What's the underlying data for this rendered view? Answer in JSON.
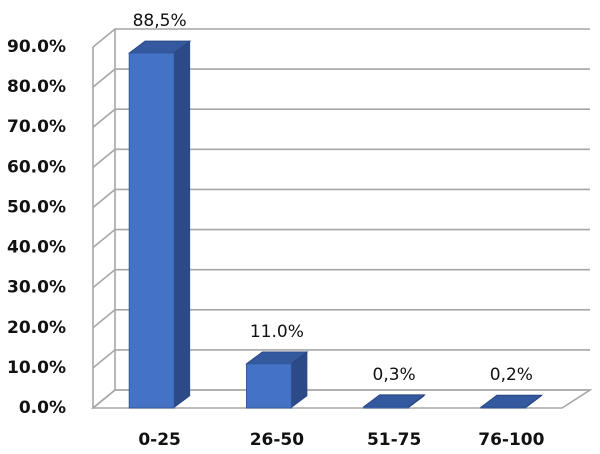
{
  "chart_data": {
    "type": "bar3d",
    "categories": [
      "0-25",
      "26-50",
      "51-75",
      "76-100"
    ],
    "values": [
      88.5,
      11.0,
      0.3,
      0.2
    ],
    "value_labels": [
      "88,5%",
      "11.0%",
      "0,3%",
      "0,2%"
    ],
    "color": "#4472c4",
    "ylim": [
      0,
      90
    ],
    "yticks": [
      {
        "value": 0,
        "label": "0.0%"
      },
      {
        "value": 10,
        "label": "10.0%"
      },
      {
        "value": 20,
        "label": "20.0%"
      },
      {
        "value": 30,
        "label": "30.0%"
      },
      {
        "value": 40,
        "label": "40.0%"
      },
      {
        "value": 50,
        "label": "50.0%"
      },
      {
        "value": 60,
        "label": "60.0%"
      },
      {
        "value": 70,
        "label": "70.0%"
      },
      {
        "value": 80,
        "label": "80.0%"
      },
      {
        "value": 90,
        "label": "90.0%"
      }
    ],
    "grid": true
  }
}
